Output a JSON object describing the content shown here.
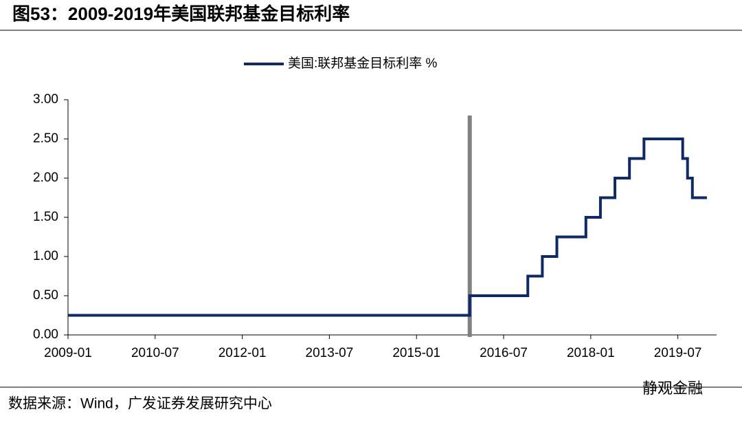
{
  "title": "图53：2009-2019年美国联邦基金目标利率",
  "source": "数据来源：Wind，广发证券发展研究中心",
  "watermark": "静观金融",
  "chart_data": {
    "type": "step",
    "series": [
      {
        "name": "美国:联邦基金目标利率 %",
        "color": "#0c2a6b",
        "x": [
          "2009-01",
          "2015-12",
          "2016-12",
          "2017-03",
          "2017-06",
          "2017-12",
          "2018-03",
          "2018-06",
          "2018-09",
          "2018-12",
          "2019-08",
          "2019-09",
          "2019-10",
          "2020-01"
        ],
        "values": [
          0.25,
          0.5,
          0.75,
          1.0,
          1.25,
          1.5,
          1.75,
          2.0,
          2.25,
          2.5,
          2.25,
          2.0,
          1.75,
          1.75
        ]
      }
    ],
    "xlim": [
      "2009-01",
      "2020-03"
    ],
    "xticks": [
      "2009-01",
      "2010-07",
      "2012-01",
      "2013-07",
      "2015-01",
      "2016-07",
      "2018-01",
      "2019-07"
    ],
    "ylim": [
      0,
      3
    ],
    "yticks": [
      {
        "value": 0,
        "label": "0.00"
      },
      {
        "value": 0.5,
        "label": "0.50"
      },
      {
        "value": 1,
        "label": "1.00"
      },
      {
        "value": 1.5,
        "label": "1.50"
      },
      {
        "value": 2,
        "label": "2.00"
      },
      {
        "value": 2.5,
        "label": "2.50"
      },
      {
        "value": 3,
        "label": "3.00"
      }
    ],
    "vline": {
      "x": "2015-12",
      "color": "#808080"
    },
    "legend": "top"
  }
}
